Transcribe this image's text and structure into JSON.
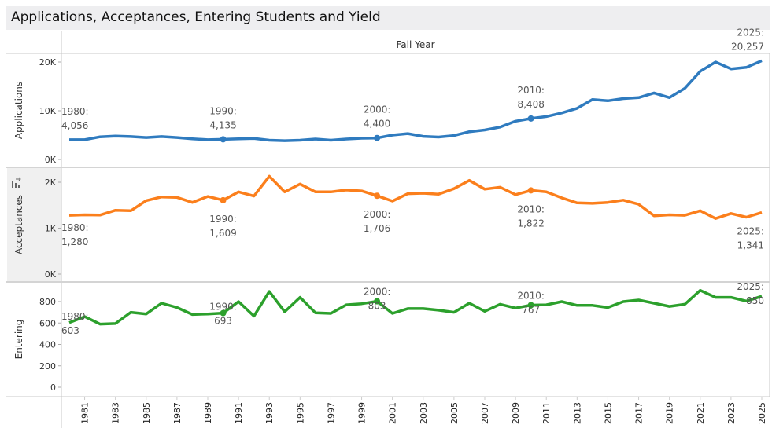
{
  "title": "Applications, Acceptances, Entering Students and Yield",
  "column_header": "Fall Year",
  "pane_icon": "swap-axis-icon",
  "colors": {
    "applications": "#2f7bbf",
    "acceptances": "#fb7f1c",
    "entering": "#2ca02c",
    "label": "#555555",
    "axis": "#bdbdbd",
    "title_bg": "#eeeef0",
    "pane_header_bg": "#f0f0f0"
  },
  "chart_data": [
    {
      "type": "line",
      "name": "applications",
      "ylabel": "Applications",
      "ylim": [
        0,
        21500
      ],
      "yticks": [
        0,
        10000,
        20000
      ],
      "ytick_labels": [
        "0K",
        "10K",
        "20K"
      ],
      "x": [
        1980,
        1981,
        1982,
        1983,
        1984,
        1985,
        1986,
        1987,
        1988,
        1989,
        1990,
        1991,
        1992,
        1993,
        1994,
        1995,
        1996,
        1997,
        1998,
        1999,
        2000,
        2001,
        2002,
        2003,
        2004,
        2005,
        2006,
        2007,
        2008,
        2009,
        2010,
        2011,
        2012,
        2013,
        2014,
        2015,
        2016,
        2017,
        2018,
        2019,
        2020,
        2021,
        2022,
        2023,
        2024,
        2025
      ],
      "values": [
        4056,
        4050,
        4650,
        4800,
        4700,
        4500,
        4700,
        4500,
        4250,
        4050,
        4135,
        4250,
        4300,
        3950,
        3850,
        3950,
        4200,
        3950,
        4200,
        4350,
        4400,
        5000,
        5300,
        4750,
        4600,
        4900,
        5700,
        6050,
        6650,
        7850,
        8408,
        8800,
        9550,
        10500,
        12300,
        12050,
        12500,
        12700,
        13650,
        12700,
        14600,
        18100,
        20000,
        18600,
        18900,
        20257
      ],
      "annotations": [
        {
          "x": 1980,
          "label": "1980:",
          "value": "4,056"
        },
        {
          "x": 1990,
          "label": "1990:",
          "value": "4,135"
        },
        {
          "x": 2000,
          "label": "2000:",
          "value": "4,400"
        },
        {
          "x": 2010,
          "label": "2010:",
          "value": "8,408"
        },
        {
          "x": 2025,
          "label": "2025:",
          "value": "20,257"
        }
      ]
    },
    {
      "type": "line",
      "name": "acceptances",
      "ylabel": "Acceptances",
      "ylim": [
        0,
        2300
      ],
      "yticks": [
        0,
        1000,
        2000
      ],
      "ytick_labels": [
        "0K",
        "1K",
        "2K"
      ],
      "x": [
        1980,
        1981,
        1982,
        1983,
        1984,
        1985,
        1986,
        1987,
        1988,
        1989,
        1990,
        1991,
        1992,
        1993,
        1994,
        1995,
        1996,
        1997,
        1998,
        1999,
        2000,
        2001,
        2002,
        2003,
        2004,
        2005,
        2006,
        2007,
        2008,
        2009,
        2010,
        2011,
        2012,
        2013,
        2014,
        2015,
        2016,
        2017,
        2018,
        2019,
        2020,
        2021,
        2022,
        2023,
        2024,
        2025
      ],
      "values": [
        1280,
        1290,
        1285,
        1390,
        1380,
        1600,
        1680,
        1670,
        1560,
        1690,
        1609,
        1790,
        1700,
        2130,
        1790,
        1960,
        1790,
        1790,
        1830,
        1810,
        1706,
        1590,
        1750,
        1760,
        1740,
        1860,
        2040,
        1850,
        1890,
        1730,
        1822,
        1790,
        1660,
        1550,
        1540,
        1560,
        1610,
        1520,
        1270,
        1290,
        1280,
        1380,
        1210,
        1320,
        1240,
        1341
      ],
      "annotations": [
        {
          "x": 1980,
          "label": "1980:",
          "value": "1,280"
        },
        {
          "x": 1990,
          "label": "1990:",
          "value": "1,609"
        },
        {
          "x": 2000,
          "label": "2000:",
          "value": "1,706"
        },
        {
          "x": 2010,
          "label": "2010:",
          "value": "1,822"
        },
        {
          "x": 2025,
          "label": "2025:",
          "value": "1,341"
        }
      ]
    },
    {
      "type": "line",
      "name": "entering",
      "ylabel": "Entering",
      "ylim": [
        0,
        940
      ],
      "yticks": [
        0,
        200,
        400,
        600,
        800
      ],
      "ytick_labels": [
        "0",
        "200",
        "400",
        "600",
        "800"
      ],
      "x": [
        1980,
        1981,
        1982,
        1983,
        1984,
        1985,
        1986,
        1987,
        1988,
        1989,
        1990,
        1991,
        1992,
        1993,
        1994,
        1995,
        1996,
        1997,
        1998,
        1999,
        2000,
        2001,
        2002,
        2003,
        2004,
        2005,
        2006,
        2007,
        2008,
        2009,
        2010,
        2011,
        2012,
        2013,
        2014,
        2015,
        2016,
        2017,
        2018,
        2019,
        2020,
        2021,
        2022,
        2023,
        2024,
        2025
      ],
      "values": [
        603,
        660,
        590,
        595,
        700,
        685,
        785,
        745,
        680,
        685,
        693,
        800,
        665,
        895,
        705,
        840,
        695,
        690,
        770,
        780,
        803,
        690,
        735,
        735,
        720,
        700,
        785,
        710,
        775,
        740,
        767,
        770,
        800,
        765,
        765,
        745,
        800,
        815,
        785,
        755,
        775,
        905,
        840,
        840,
        805,
        850
      ],
      "annotations": [
        {
          "x": 1980,
          "label": "1980:",
          "value": "603"
        },
        {
          "x": 1990,
          "label": "1990:",
          "value": "693"
        },
        {
          "x": 2000,
          "label": "2000:",
          "value": "803"
        },
        {
          "x": 2010,
          "label": "2010:",
          "value": "767"
        },
        {
          "x": 2025,
          "label": "2025:",
          "value": "850"
        }
      ]
    }
  ],
  "x_axis": {
    "label": "Fall Year",
    "tick_labels": [
      "1981",
      "1983",
      "1985",
      "1987",
      "1989",
      "1991",
      "1993",
      "1995",
      "1997",
      "1999",
      "2001",
      "2003",
      "2005",
      "2007",
      "2009",
      "2011",
      "2013",
      "2015",
      "2017",
      "2019",
      "2021",
      "2023",
      "2025"
    ]
  }
}
